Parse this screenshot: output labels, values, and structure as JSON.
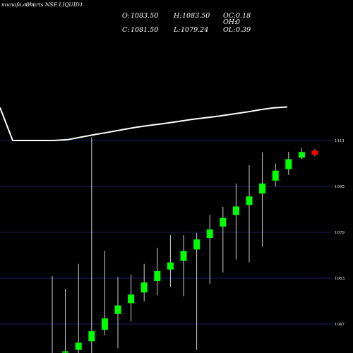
{
  "header": {
    "watermark": "munafa.com",
    "title": "Charts NSE LIQUID1",
    "ohlc": [
      {
        "label": "O:",
        "value": "1083.50"
      },
      {
        "label": "H:",
        "value": "1083.50"
      },
      {
        "label": "OC:",
        "value": "0.18"
      },
      {
        "label": "C:",
        "value": "1081.50"
      },
      {
        "label": "L:",
        "value": "1079.24"
      },
      {
        "label": "OH:",
        "value": "0"
      },
      {
        "label": "OL:",
        "value": "0.39"
      }
    ]
  },
  "colors": {
    "background": "#000000",
    "grid": "#1c1c5a",
    "up": "#00ff00",
    "down": "#ff0000",
    "line": "#ffffff",
    "text": "#ffffff"
  },
  "chart_data": {
    "type": "candlestick",
    "xlabel": "",
    "ylabel": "",
    "y_ticks": [
      {
        "value": 1111,
        "label": "1111"
      },
      {
        "value": 1095,
        "label": "1095"
      },
      {
        "value": 1079,
        "label": "1079"
      },
      {
        "value": 1063,
        "label": "1063"
      },
      {
        "value": 1047,
        "label": "1047"
      }
    ],
    "ylim": [
      1038,
      1131
    ],
    "grid": true,
    "candles": [
      {
        "open": 1036.3,
        "close": 1036.5,
        "high": 1063.7,
        "low": 1036.0
      },
      {
        "open": 1037.0,
        "close": 1037.5,
        "high": 1059.3,
        "low": 1036.0
      },
      {
        "open": 1038.0,
        "close": 1040.5,
        "high": 1068.0,
        "low": 1036.0
      },
      {
        "open": 1041.0,
        "close": 1044.5,
        "high": 1112.1,
        "low": 1036.0
      },
      {
        "open": 1045.0,
        "close": 1049.0,
        "high": 1072.6,
        "low": 1043.1
      },
      {
        "open": 1050.5,
        "close": 1053.5,
        "high": 1063.4,
        "low": 1038.5
      },
      {
        "open": 1054.3,
        "close": 1057.3,
        "high": 1064.3,
        "low": 1048.0
      },
      {
        "open": 1058.0,
        "close": 1061.5,
        "high": 1068.0,
        "low": 1055.0
      },
      {
        "open": 1062.0,
        "close": 1065.5,
        "high": 1073.6,
        "low": 1057.0
      },
      {
        "open": 1066.0,
        "close": 1068.5,
        "high": 1078.0,
        "low": 1060.0
      },
      {
        "open": 1069.0,
        "close": 1072.5,
        "high": 1078.0,
        "low": 1056.7
      },
      {
        "open": 1073.0,
        "close": 1076.5,
        "high": 1078.8,
        "low": 1038.0
      },
      {
        "open": 1077.0,
        "close": 1080.0,
        "high": 1085.0,
        "low": 1061.0
      },
      {
        "open": 1081.0,
        "close": 1084.0,
        "high": 1087.9,
        "low": 1065.0
      },
      {
        "open": 1085.0,
        "close": 1088.0,
        "high": 1096.0,
        "low": 1069.5
      },
      {
        "open": 1088.5,
        "close": 1091.5,
        "high": 1102.4,
        "low": 1068.5
      },
      {
        "open": 1092.5,
        "close": 1096.0,
        "high": 1106.9,
        "low": 1074.0
      },
      {
        "open": 1097.0,
        "close": 1100.5,
        "high": 1103.0,
        "low": 1095.0
      },
      {
        "open": 1101.0,
        "close": 1104.5,
        "high": 1107.0,
        "low": 1099.0
      },
      {
        "open": 1105.0,
        "close": 1107.0,
        "high": 1108.5,
        "low": 1104.5
      },
      {
        "open": 1107.5,
        "close": 1106.0,
        "high": 1108.0,
        "low": 1105.5
      }
    ],
    "line_overlay": {
      "name": "",
      "points": [
        {
          "x": 0,
          "y": 1122.5
        },
        {
          "x": 1,
          "y": 1111.0
        },
        {
          "x": 2,
          "y": 1111.0
        },
        {
          "x": 3,
          "y": 1111.0
        },
        {
          "x": 4,
          "y": 1111.0
        },
        {
          "x": 5,
          "y": 1111.3
        },
        {
          "x": 6,
          "y": 1112.2
        },
        {
          "x": 7,
          "y": 1113.1
        },
        {
          "x": 8,
          "y": 1113.9
        },
        {
          "x": 9,
          "y": 1114.8
        },
        {
          "x": 10,
          "y": 1115.6
        },
        {
          "x": 11,
          "y": 1116.3
        },
        {
          "x": 12,
          "y": 1116.9
        },
        {
          "x": 13,
          "y": 1117.6
        },
        {
          "x": 14,
          "y": 1118.3
        },
        {
          "x": 15,
          "y": 1118.9
        },
        {
          "x": 16,
          "y": 1119.5
        },
        {
          "x": 17,
          "y": 1120.2
        },
        {
          "x": 18,
          "y": 1120.9
        },
        {
          "x": 19,
          "y": 1121.7
        },
        {
          "x": 20,
          "y": 1122.4
        },
        {
          "x": 21,
          "y": 1122.7
        }
      ]
    }
  }
}
